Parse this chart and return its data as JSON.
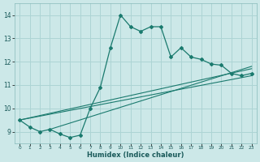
{
  "xlabel": "Humidex (Indice chaleur)",
  "bg_color": "#cce8e8",
  "line_color": "#1a7a6e",
  "grid_color": "#add4d4",
  "xlim": [
    -0.5,
    23.5
  ],
  "ylim": [
    8.5,
    14.5
  ],
  "yticks": [
    9,
    10,
    11,
    12,
    13,
    14
  ],
  "xticks": [
    0,
    1,
    2,
    3,
    4,
    5,
    6,
    7,
    8,
    9,
    10,
    11,
    12,
    13,
    14,
    15,
    16,
    17,
    18,
    19,
    20,
    21,
    22,
    23
  ],
  "main_line_x": [
    0,
    1,
    2,
    3,
    4,
    5,
    6,
    7,
    8,
    9,
    10,
    11,
    12,
    13,
    14,
    15,
    16,
    17,
    18,
    19,
    20,
    21,
    22,
    23
  ],
  "main_line_y": [
    9.5,
    9.2,
    9.0,
    9.1,
    8.9,
    8.75,
    8.85,
    10.0,
    10.9,
    12.6,
    14.0,
    13.5,
    13.3,
    13.5,
    13.5,
    12.2,
    12.6,
    12.2,
    12.1,
    11.9,
    11.85,
    11.5,
    11.4,
    11.5
  ],
  "reg_line1_x": [
    0,
    23
  ],
  "reg_line1_y": [
    9.5,
    11.4
  ],
  "reg_line2_x": [
    0,
    23
  ],
  "reg_line2_y": [
    9.5,
    11.7
  ],
  "reg_line3_x": [
    3,
    23
  ],
  "reg_line3_y": [
    9.1,
    11.8
  ]
}
